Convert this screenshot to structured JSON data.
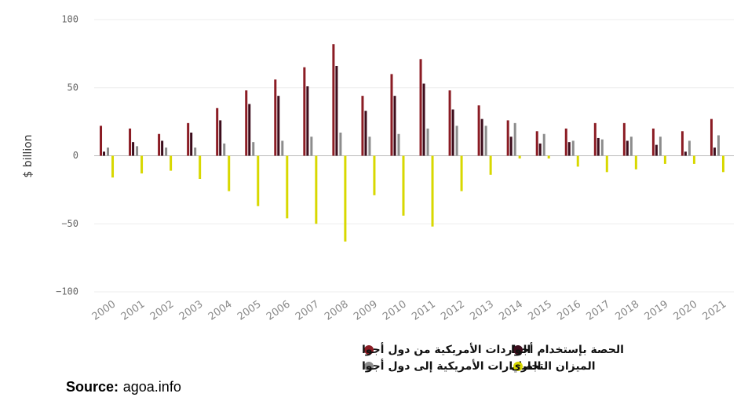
{
  "chart_data": {
    "type": "bar",
    "y_label": "$ billion",
    "categories": [
      "2000",
      "2001",
      "2002",
      "2003",
      "2004",
      "2005",
      "2006",
      "2007",
      "2008",
      "2009",
      "2010",
      "2011",
      "2012",
      "2013",
      "2014",
      "2015",
      "2016",
      "2017",
      "2018",
      "2019",
      "2020",
      "2021"
    ],
    "series": [
      {
        "name": "الواردات الأمريكية من دول أجوا",
        "color": "#8b1c24",
        "values": [
          22,
          20,
          16,
          24,
          35,
          48,
          56,
          65,
          82,
          44,
          60,
          71,
          48,
          37,
          26,
          18,
          20,
          24,
          24,
          20,
          18,
          27
        ]
      },
      {
        "name": "الحصة بإستخدام أجوا",
        "color": "#3d0d1c",
        "values": [
          3,
          10,
          11,
          17,
          26,
          38,
          44,
          51,
          66,
          33,
          44,
          53,
          34,
          27,
          14,
          9,
          10,
          13,
          11,
          8,
          3,
          6
        ]
      },
      {
        "name": "الصادارات الأمريكية إلى دول أجوا",
        "color": "#8c8c8c",
        "values": [
          6,
          7,
          6,
          6,
          9,
          10,
          11,
          14,
          17,
          14,
          16,
          20,
          22,
          22,
          24,
          16,
          11,
          12,
          14,
          14,
          11,
          15
        ]
      },
      {
        "name": "الميزان التجاري",
        "color": "#d8d800",
        "values": [
          -16,
          -13,
          -11,
          -17,
          -26,
          -37,
          -46,
          -50,
          -63,
          -29,
          -44,
          -52,
          -26,
          -14,
          -2,
          -2,
          -8,
          -12,
          -10,
          -6,
          -6,
          -12
        ]
      }
    ],
    "ylim": [
      -100,
      100
    ],
    "yticks": [
      {
        "value": -100,
        "label": "−100"
      },
      {
        "value": -50,
        "label": "−50"
      },
      0,
      50,
      100
    ],
    "grid": true,
    "source_label": "Source:",
    "source": "agoa.info"
  }
}
